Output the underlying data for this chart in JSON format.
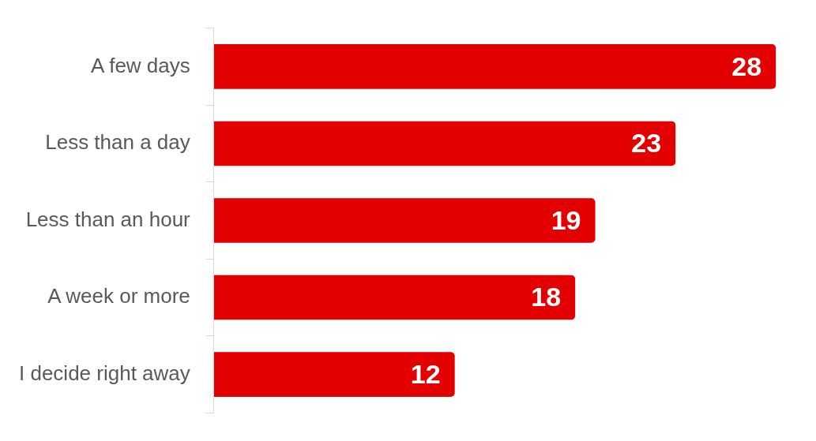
{
  "chart_data": {
    "type": "bar",
    "orientation": "horizontal",
    "categories": [
      "A few days",
      "Less than a day",
      "Less than an hour",
      "A week or more",
      "I decide right away"
    ],
    "values": [
      28,
      23,
      19,
      18,
      12
    ],
    "color": "#e30000",
    "data_labels": true,
    "legend": false,
    "grid": false
  }
}
